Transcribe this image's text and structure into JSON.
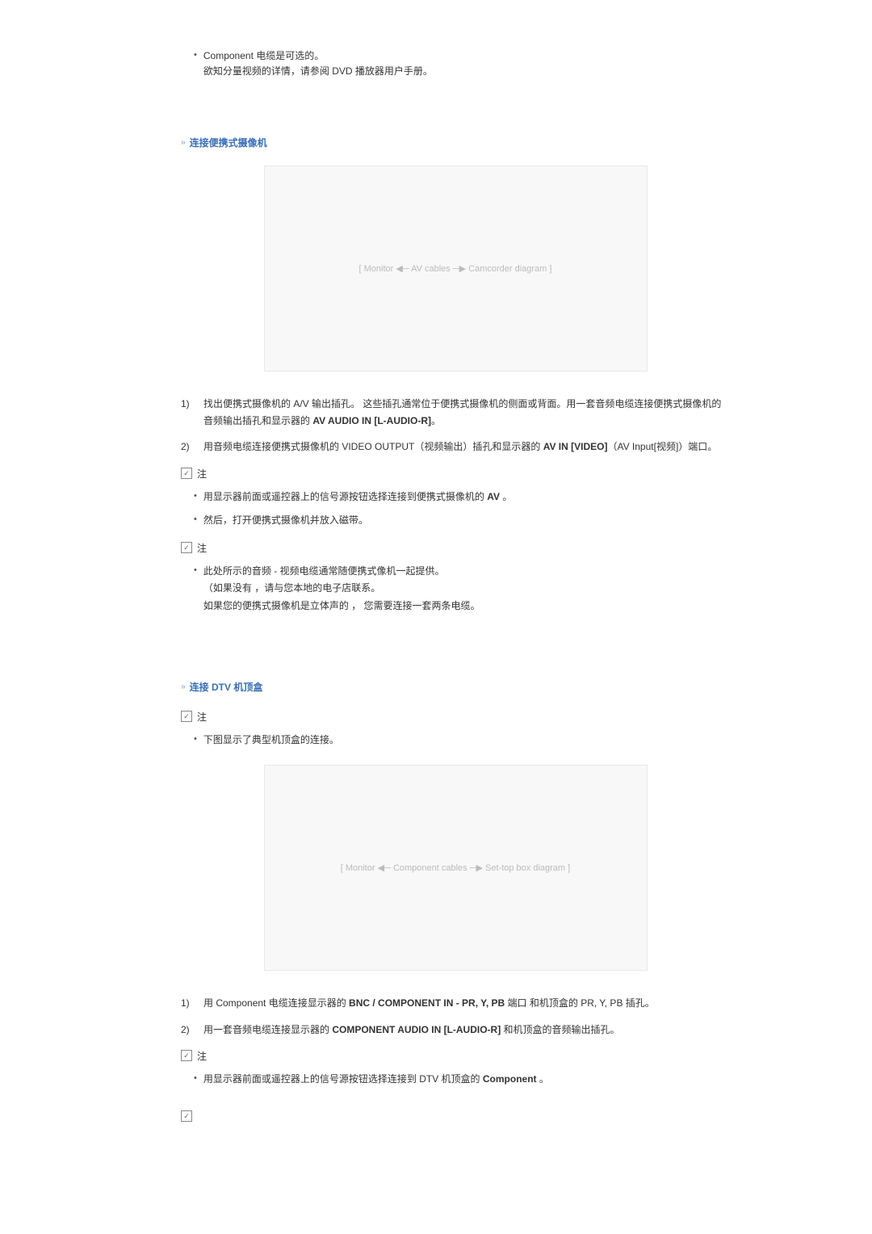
{
  "intro": {
    "line1": "Component 电缆是可选的。",
    "line2": "欲知分量视频的详情，请参阅 DVD 播放器用户手册。"
  },
  "section1": {
    "title": "连接便携式摄像机",
    "image_alt": "[ Monitor ◀─ AV cables ─▶ Camcorder diagram ]",
    "step1_pre": "找出便携式摄像机的 A/V 输出插孔。 这些插孔通常位于便携式摄像机的侧面或背面。用一套音频电缆连接便携式摄像机的音频输出插孔和显示器的 ",
    "step1_bold": "AV AUDIO IN [L-AUDIO-R]",
    "step1_post": "。",
    "step2_pre": "用音频电缆连接便携式摄像机的 VIDEO OUTPUT（视频输出）插孔和显示器的 ",
    "step2_bold": "AV IN [VIDEO]",
    "step2_post": "（AV Input[视频]）端口。",
    "noteA_label": "注",
    "noteA_1_pre": "用显示器前面或遥控器上的信号源按钮选择连接到便携式摄像机的 ",
    "noteA_1_bold": "AV",
    "noteA_1_post": " 。",
    "noteA_2": "然后，打开便携式摄像机并放入磁带。",
    "noteB_label": "注",
    "noteB_1_l1": "此处所示的音频 - 视频电缆通常随便携式像机一起提供。",
    "noteB_1_l2": "（如果没有 ，请与您本地的电子店联系。",
    "noteB_1_l3": "如果您的便携式摄像机是立体声的 ， 您需要连接一套两条电缆。"
  },
  "section2": {
    "title": "连接 DTV 机顶盒",
    "note0_label": "注",
    "note0_1": "下图显示了典型机顶盒的连接。",
    "image_alt": "[ Monitor ◀─ Component cables ─▶ Set-top box diagram ]",
    "step1_pre": "用 Component 电缆连接显示器的 ",
    "step1_bold": "BNC / COMPONENT IN - PR, Y, PB",
    "step1_post": " 端口 和机顶盒的 PR, Y, PB 插孔。",
    "step2_pre": "用一套音频电缆连接显示器的 ",
    "step2_bold": "COMPONENT AUDIO IN [L-AUDIO-R]",
    "step2_post": " 和机顶盒的音频输出插孔。",
    "noteA_label": "注",
    "noteA_1_pre": "用显示器前面或遥控器上的信号源按钮选择连接到 DTV 机顶盒的 ",
    "noteA_1_bold": "Component",
    "noteA_1_post": " 。"
  },
  "labels": {
    "num1": "1)",
    "num2": "2)"
  }
}
